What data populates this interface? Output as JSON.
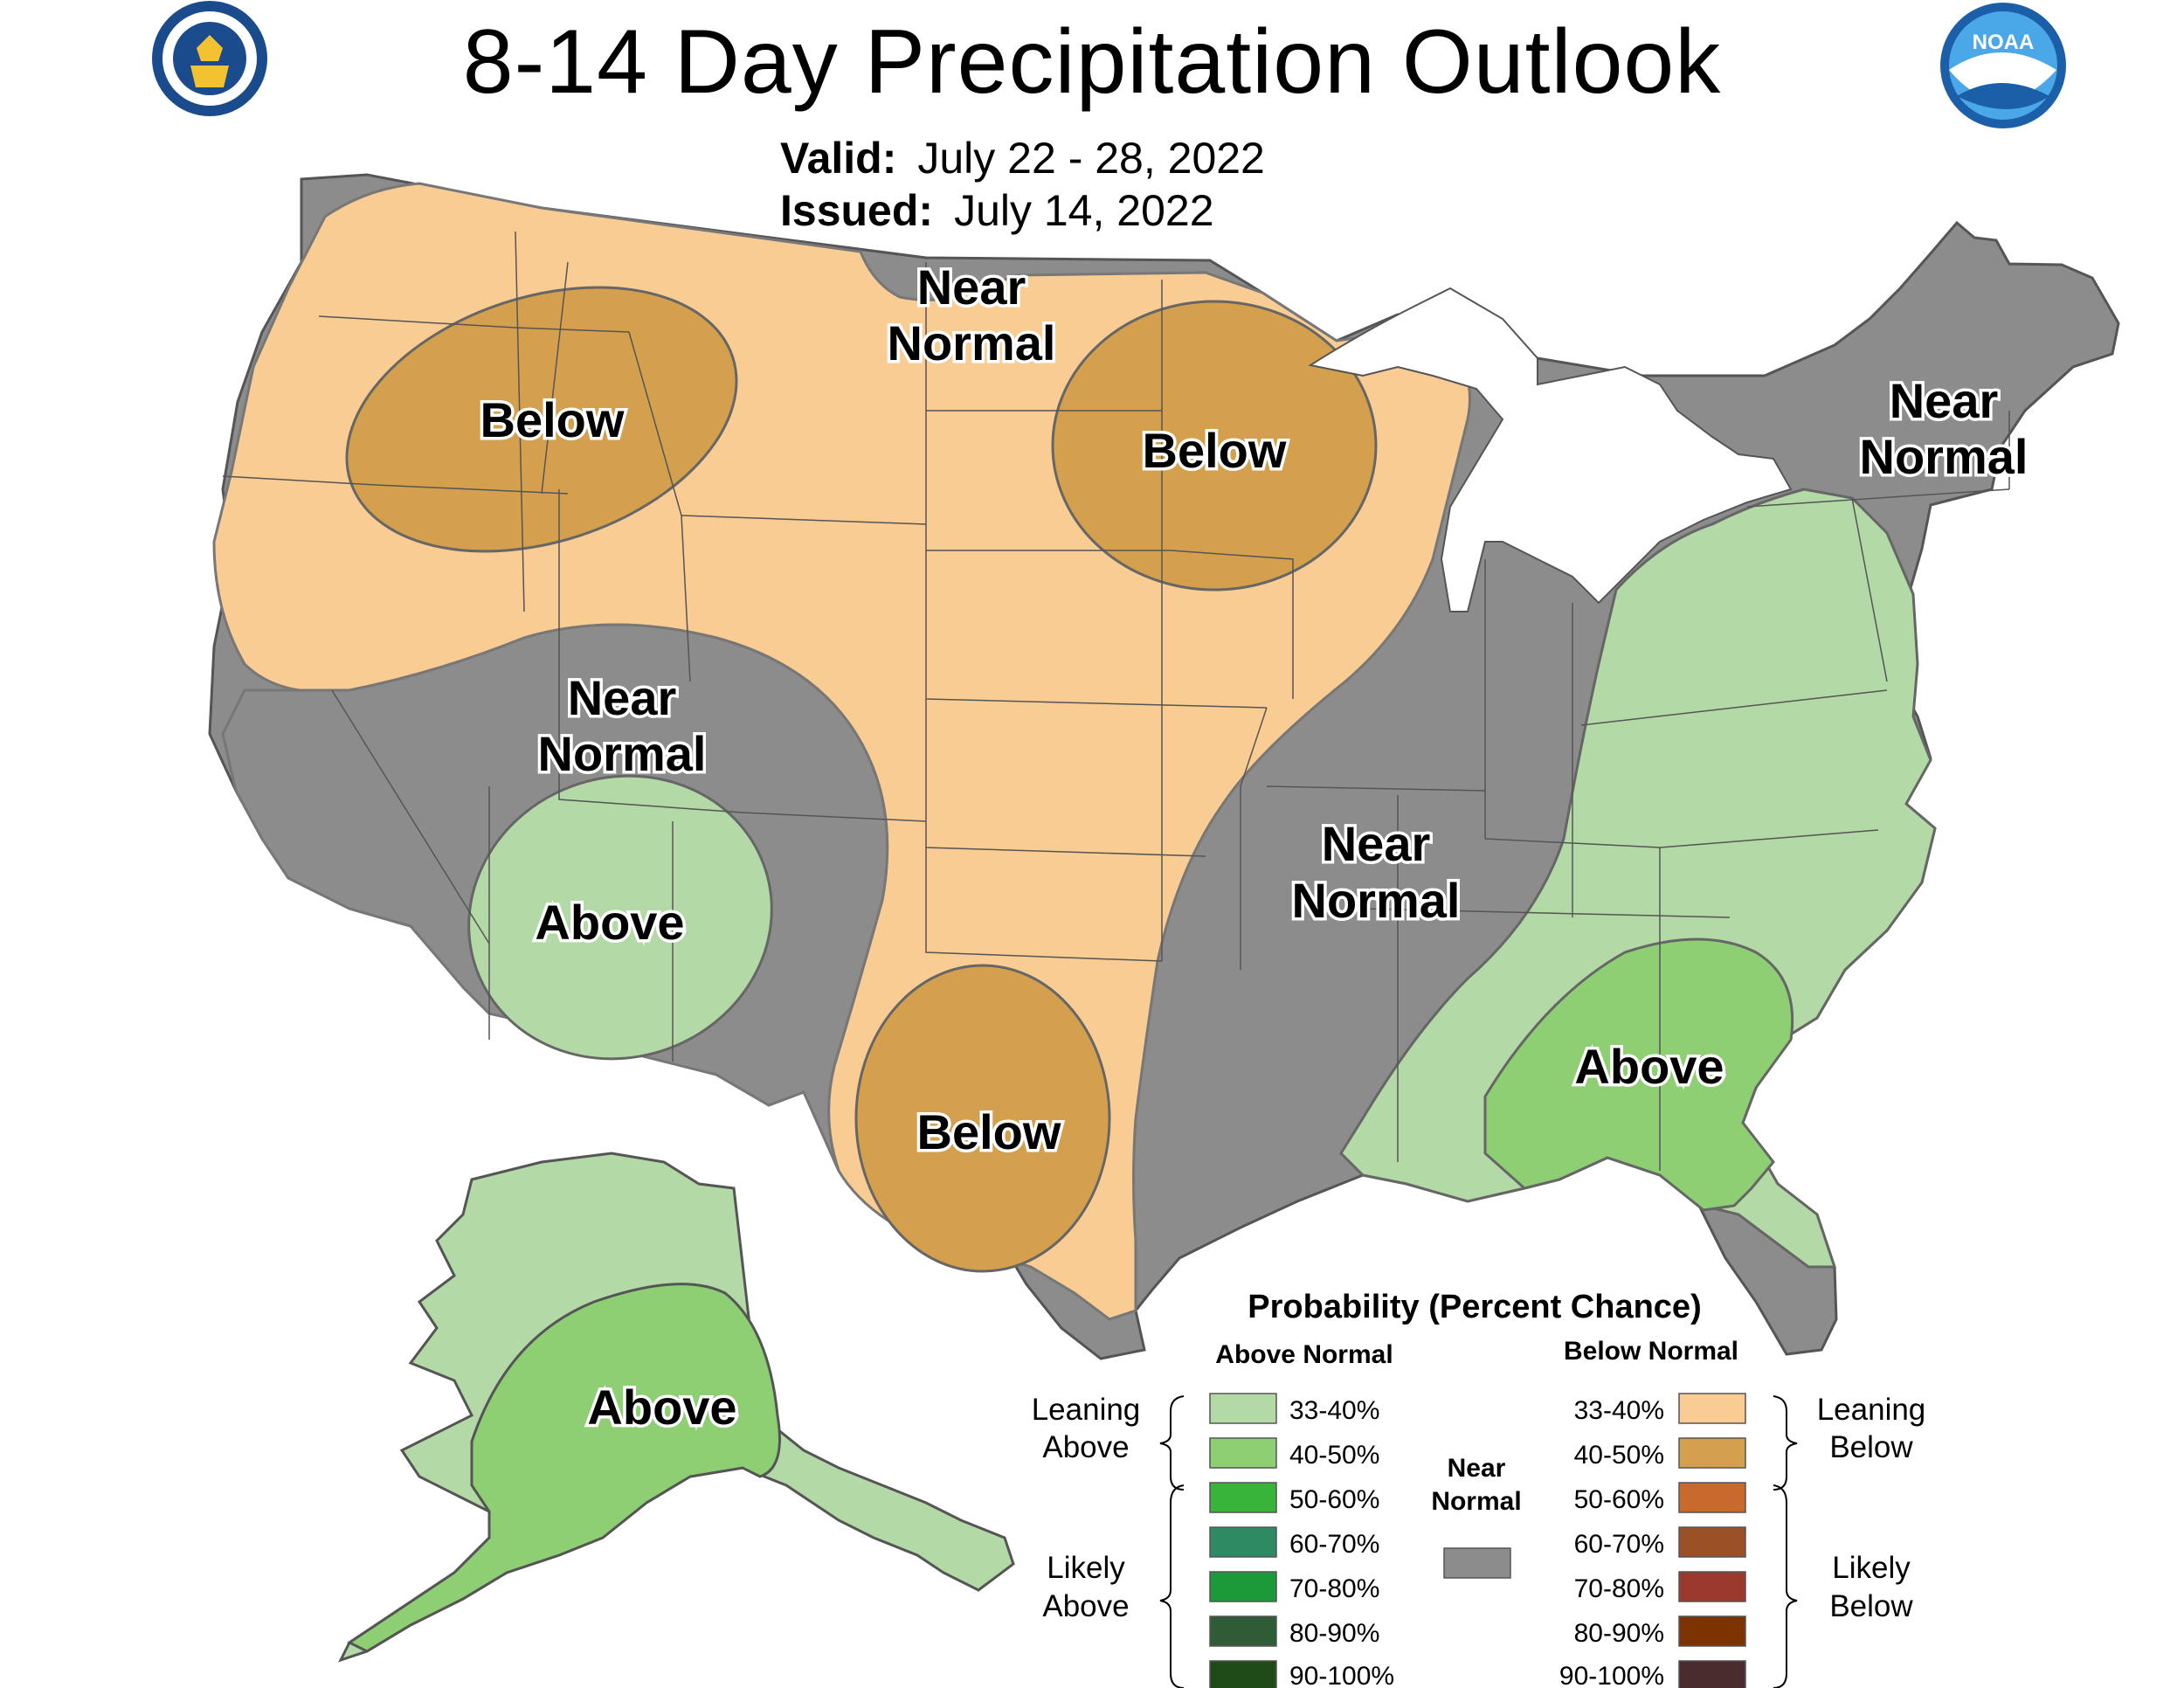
{
  "title": "8-14 Day Precipitation Outlook",
  "valid_label": "Valid:",
  "valid_value": "July 22 - 28, 2022",
  "issued_label": "Issued:",
  "issued_value": "July 14, 2022",
  "logos": {
    "left": "department-of-commerce-seal",
    "right": "noaa-logo"
  },
  "region_labels": {
    "nw_below": "Below",
    "north_near_1": "Near",
    "north_near_2": "Normal",
    "mw_below": "Below",
    "ne_near_1": "Near",
    "ne_near_2": "Normal",
    "sw_near_1": "Near",
    "sw_near_2": "Normal",
    "sw_above": "Above",
    "mid_near_1": "Near",
    "mid_near_2": "Normal",
    "tx_below": "Below",
    "se_above": "Above",
    "ak_above": "Above"
  },
  "colors": {
    "near_normal": "#8c8c8c",
    "below_33_40": "#f9cc93",
    "below_40_50": "#d4a04e",
    "below_50_60": "#c86a2e",
    "below_60_70": "#9c5026",
    "below_70_80": "#9b3a2c",
    "below_80_90": "#7c3300",
    "below_90_100": "#4a2c2e",
    "above_33_40": "#b3d9a7",
    "above_40_50": "#8ecf74",
    "above_50_60": "#39b43a",
    "above_60_70": "#2e8a63",
    "above_70_80": "#1c9a39",
    "above_80_90": "#2f5b36",
    "above_90_100": "#1e4b17"
  },
  "legend": {
    "title": "Probability (Percent Chance)",
    "above_header": "Above Normal",
    "below_header": "Below Normal",
    "near_label_1": "Near",
    "near_label_2": "Normal",
    "leaning_above_1": "Leaning",
    "leaning_above_2": "Above",
    "likely_above_1": "Likely",
    "likely_above_2": "Above",
    "leaning_below_1": "Leaning",
    "leaning_below_2": "Below",
    "likely_below_1": "Likely",
    "likely_below_2": "Below",
    "ranges": [
      "33-40%",
      "40-50%",
      "50-60%",
      "60-70%",
      "70-80%",
      "80-90%",
      "90-100%"
    ]
  }
}
